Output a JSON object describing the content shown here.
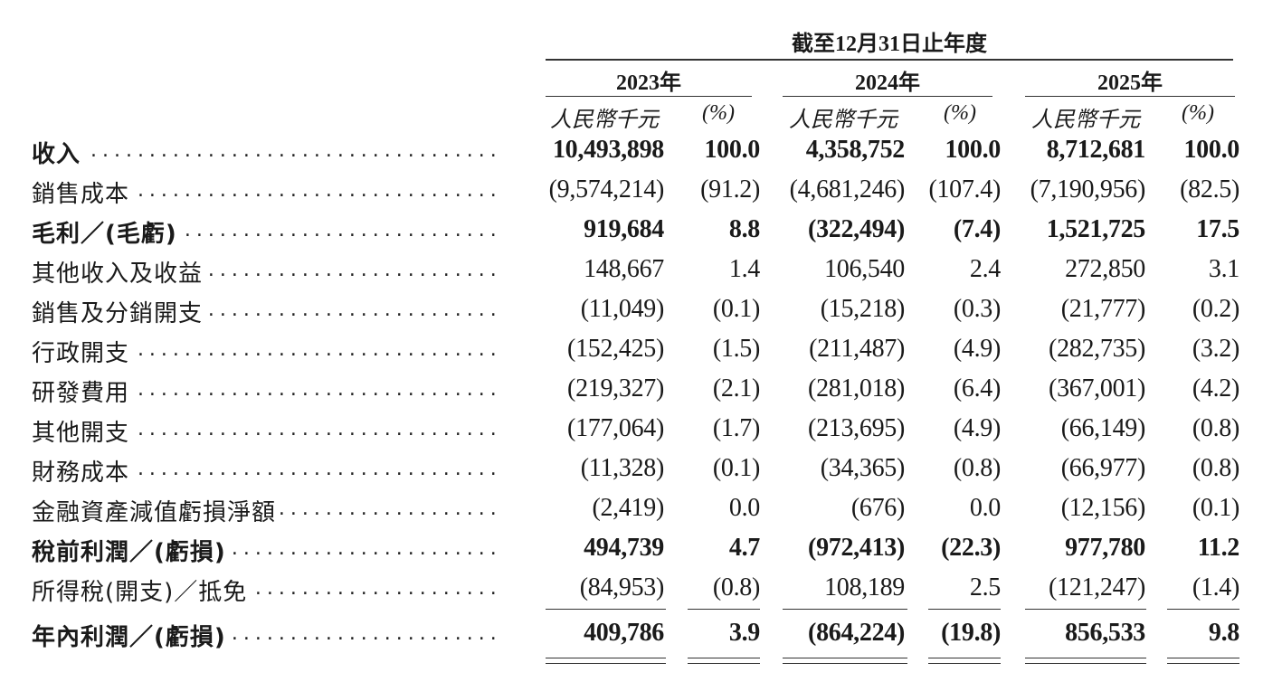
{
  "header": {
    "period": "截至12月31日止年度",
    "years": [
      "2023年",
      "2024年",
      "2025年"
    ],
    "unit_label": "人民幣千元",
    "pct_label": "(%)"
  },
  "rows": [
    {
      "label": "收入",
      "bold": true,
      "v2023": "10,493,898",
      "p2023": "100.0",
      "v2024": "4,358,752",
      "p2024": "100.0",
      "v2025": "8,712,681",
      "p2025": "100.0"
    },
    {
      "label": "銷售成本",
      "bold": false,
      "v2023": "(9,574,214)",
      "p2023": "(91.2)",
      "v2024": "(4,681,246)",
      "p2024": "(107.4)",
      "v2025": "(7,190,956)",
      "p2025": "(82.5)"
    },
    {
      "label": "毛利／(毛虧)",
      "bold": true,
      "v2023": "919,684",
      "p2023": "8.8",
      "v2024": "(322,494)",
      "p2024": "(7.4)",
      "v2025": "1,521,725",
      "p2025": "17.5"
    },
    {
      "label": "其他收入及收益",
      "bold": false,
      "v2023": "148,667",
      "p2023": "1.4",
      "v2024": "106,540",
      "p2024": "2.4",
      "v2025": "272,850",
      "p2025": "3.1"
    },
    {
      "label": "銷售及分銷開支",
      "bold": false,
      "v2023": "(11,049)",
      "p2023": "(0.1)",
      "v2024": "(15,218)",
      "p2024": "(0.3)",
      "v2025": "(21,777)",
      "p2025": "(0.2)"
    },
    {
      "label": "行政開支",
      "bold": false,
      "v2023": "(152,425)",
      "p2023": "(1.5)",
      "v2024": "(211,487)",
      "p2024": "(4.9)",
      "v2025": "(282,735)",
      "p2025": "(3.2)"
    },
    {
      "label": "研發費用",
      "bold": false,
      "v2023": "(219,327)",
      "p2023": "(2.1)",
      "v2024": "(281,018)",
      "p2024": "(6.4)",
      "v2025": "(367,001)",
      "p2025": "(4.2)"
    },
    {
      "label": "其他開支",
      "bold": false,
      "v2023": "(177,064)",
      "p2023": "(1.7)",
      "v2024": "(213,695)",
      "p2024": "(4.9)",
      "v2025": "(66,149)",
      "p2025": "(0.8)"
    },
    {
      "label": "財務成本",
      "bold": false,
      "v2023": "(11,328)",
      "p2023": "(0.1)",
      "v2024": "(34,365)",
      "p2024": "(0.8)",
      "v2025": "(66,977)",
      "p2025": "(0.8)"
    },
    {
      "label": "金融資產減值虧損淨額",
      "bold": false,
      "v2023": "(2,419)",
      "p2023": "0.0",
      "v2024": "(676)",
      "p2024": "0.0",
      "v2025": "(12,156)",
      "p2025": "(0.1)"
    },
    {
      "label": "稅前利潤／(虧損)",
      "bold": true,
      "v2023": "494,739",
      "p2023": "4.7",
      "v2024": "(972,413)",
      "p2024": "(22.3)",
      "v2025": "977,780",
      "p2025": "11.2"
    },
    {
      "label": "所得稅(開支)／抵免",
      "bold": false,
      "v2023": "(84,953)",
      "p2023": "(0.8)",
      "v2024": "108,189",
      "p2024": "2.5",
      "v2025": "(121,247)",
      "p2025": "(1.4)"
    },
    {
      "label": "年內利潤／(虧損)",
      "bold": true,
      "v2023": "409,786",
      "p2023": "3.9",
      "v2024": "(864,224)",
      "p2024": "(19.8)",
      "v2025": "856,533",
      "p2025": "9.8"
    }
  ]
}
